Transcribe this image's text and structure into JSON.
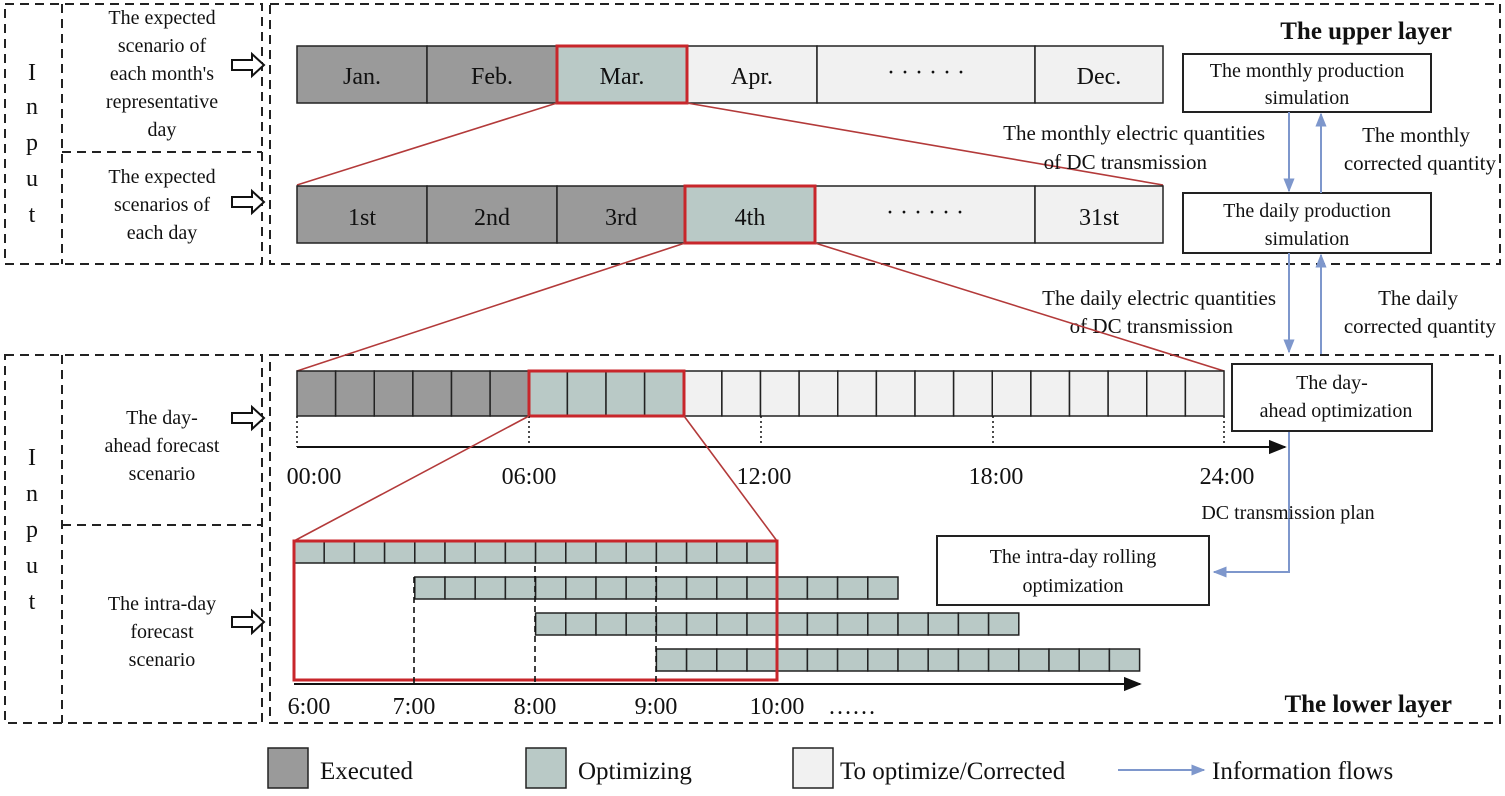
{
  "inputs": {
    "upper_letters": [
      "I",
      "n",
      "p",
      "u",
      "t"
    ],
    "lower_letters": [
      "I",
      "n",
      "p",
      "u",
      "t"
    ],
    "upper_month_label": [
      "The expected",
      "scenario of",
      "each month's",
      "representative",
      "day"
    ],
    "upper_day_label": [
      "The expected",
      "scenarios of",
      "each day"
    ],
    "lower_dayahead_label": [
      "The day-",
      "ahead forecast",
      "scenario"
    ],
    "lower_intraday_label": [
      "The intra-day",
      "forecast",
      "scenario"
    ]
  },
  "upper_layer": {
    "title": "The upper layer",
    "months": [
      "Jan.",
      "Feb.",
      "Mar.",
      "Apr.",
      "· · · · · ·",
      "Dec."
    ],
    "days": [
      "1st",
      "2nd",
      "3rd",
      "4th",
      "· · · · · ·",
      "31st"
    ],
    "monthly_sim": [
      "The monthly production",
      "simulation"
    ],
    "daily_sim": [
      "The daily production",
      "simulation"
    ],
    "monthly_quantities": [
      "The monthly electric quantities",
      "of DC transmission"
    ],
    "monthly_corrected": [
      "The monthly",
      "corrected quantity"
    ],
    "daily_quantities": [
      "The daily electric quantities",
      "of DC transmission"
    ],
    "daily_corrected": [
      "The daily",
      "corrected quantity"
    ]
  },
  "lower_layer": {
    "title": "The lower layer",
    "dayahead_opt": [
      "The day-",
      "ahead optimization"
    ],
    "dc_plan": "DC transmission plan",
    "intraday_opt": [
      "The intra-day rolling",
      "optimization"
    ],
    "day_ticks": [
      "00:00",
      "06:00",
      "12:00",
      "18:00",
      "24:00"
    ],
    "rolling_ticks": [
      "6:00",
      "7:00",
      "8:00",
      "9:00",
      "10:00",
      "……"
    ]
  },
  "legend": {
    "executed": "Executed",
    "optimizing": "Optimizing",
    "to_optimize": "To optimize/Corrected",
    "info_flows": "Information flows"
  },
  "colors": {
    "executed": "#9a9a9a",
    "optimizing": "#b9c9c6",
    "to_optimize": "#f1f1f1",
    "highlight": "#c8262b",
    "flow": "#7e97cc"
  }
}
